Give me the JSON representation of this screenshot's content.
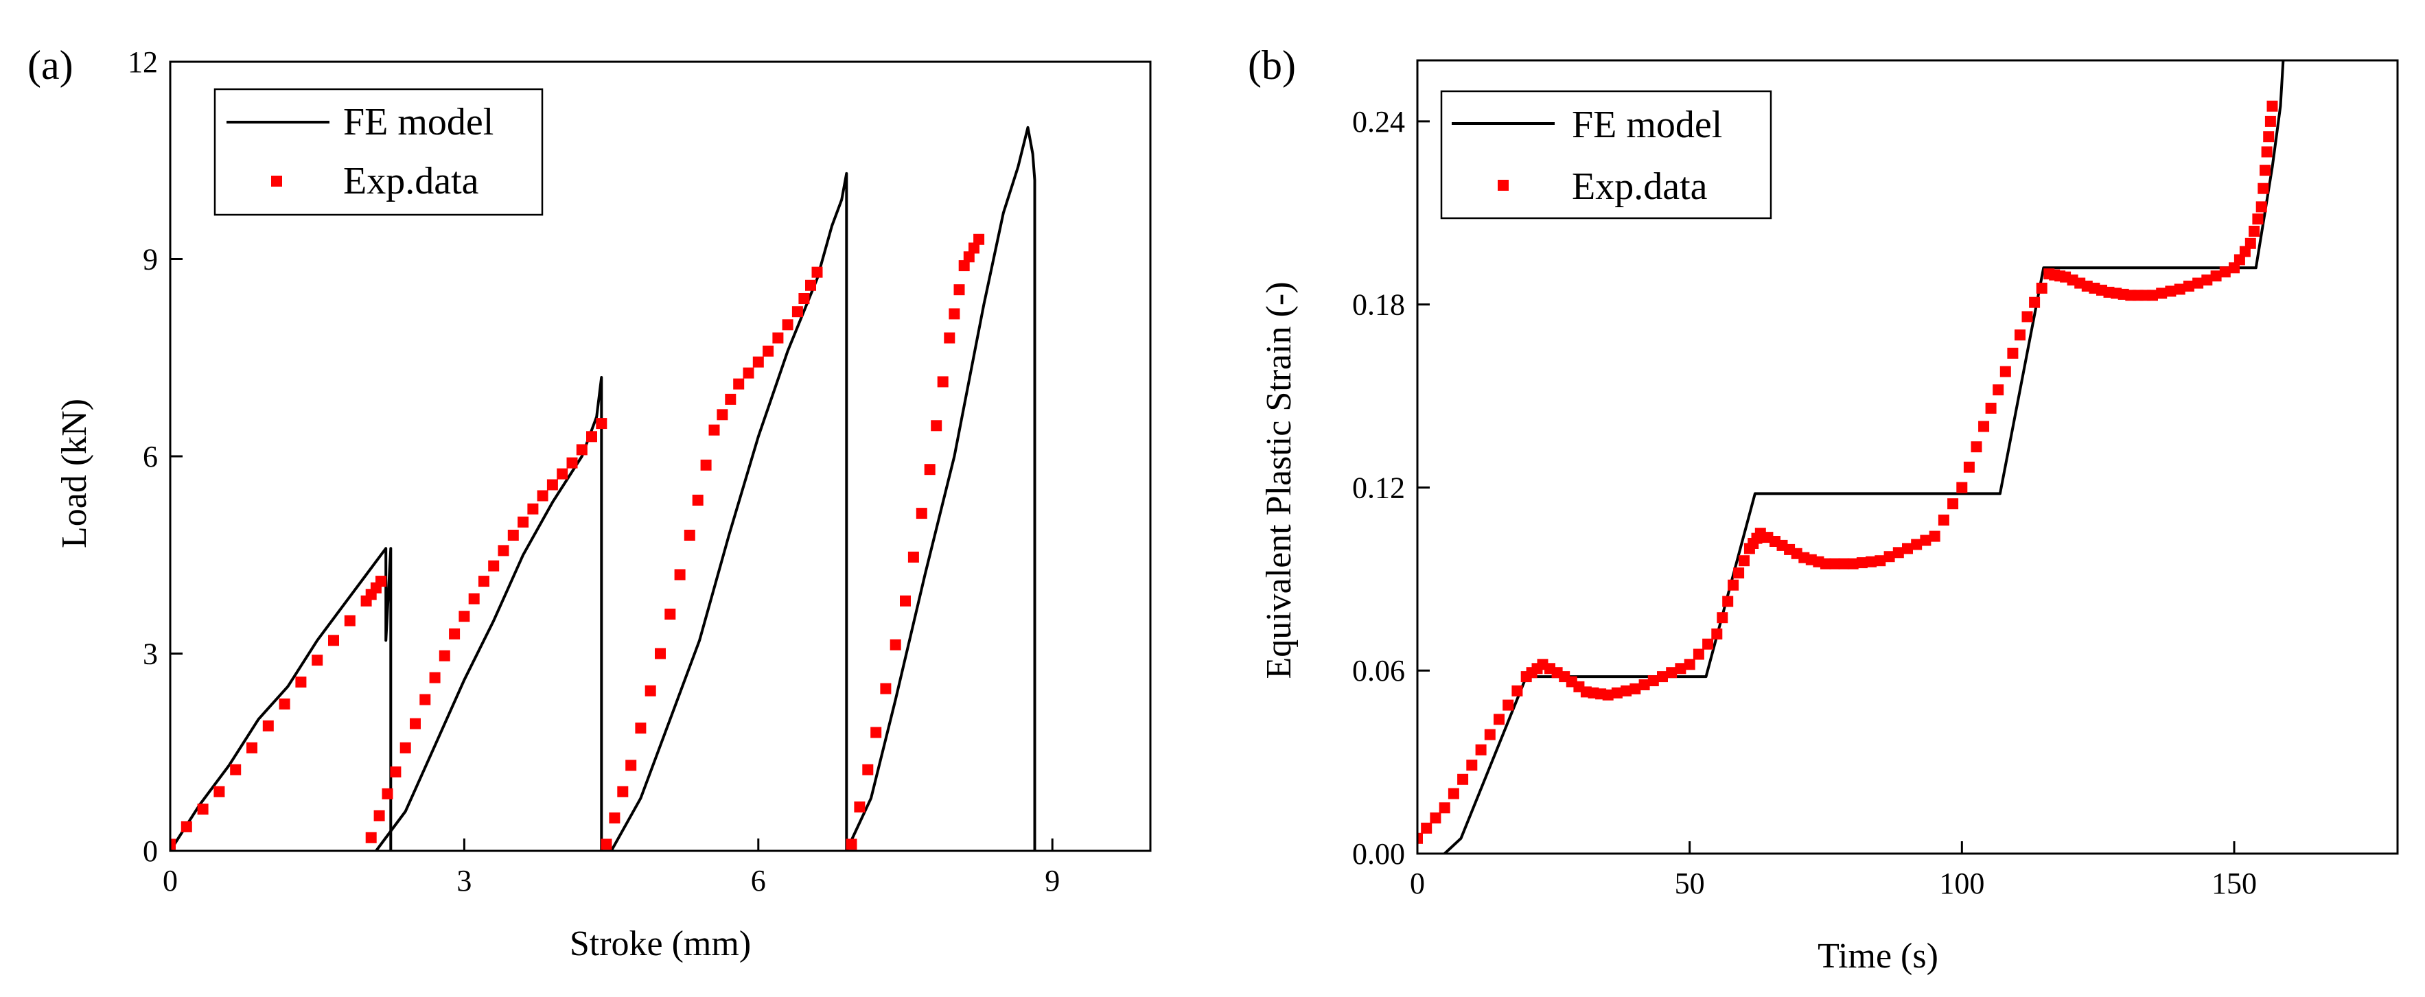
{
  "figure": {
    "panels": [
      "(a)",
      "(b)"
    ]
  },
  "colors": {
    "fe_model": "#000000",
    "exp_data": "#ff0000",
    "axes": "#000000",
    "background": "#ffffff"
  },
  "chart_data": [
    {
      "id": "a",
      "panel_label": "(a)",
      "type": "line",
      "title": "",
      "xlabel": "Stroke (mm)",
      "ylabel": "Load (kN)",
      "xlim": [
        0,
        10
      ],
      "ylim": [
        0,
        12
      ],
      "xticks": [
        0,
        3,
        6,
        9
      ],
      "yticks": [
        0,
        3,
        6,
        9,
        12
      ],
      "x_tick_labels": [
        "0",
        "3",
        "6",
        "9"
      ],
      "y_tick_labels": [
        "0",
        "3",
        "6",
        "9",
        "12"
      ],
      "grid": false,
      "legend": {
        "position": "top-left",
        "entries": [
          "FE model",
          "Exp.data"
        ]
      },
      "series": [
        {
          "name": "FE model",
          "style": "line",
          "segments": [
            {
              "x": [
                0.0,
                0.3,
                0.6,
                0.9,
                1.2,
                1.5,
                1.8,
                2.0,
                2.1,
                2.15,
                2.2,
                2.2,
                2.25,
                2.25
              ],
              "y": [
                0.0,
                0.7,
                1.3,
                2.0,
                2.5,
                3.2,
                3.8,
                4.2,
                4.4,
                4.5,
                4.6,
                3.2,
                4.6,
                0.0
              ]
            },
            {
              "x": [
                2.1,
                2.4,
                2.7,
                3.0,
                3.3,
                3.6,
                3.9,
                4.2,
                4.35,
                4.4,
                4.4
              ],
              "y": [
                0.0,
                0.6,
                1.6,
                2.6,
                3.5,
                4.5,
                5.3,
                6.0,
                6.6,
                7.2,
                0.0
              ]
            },
            {
              "x": [
                4.5,
                4.8,
                5.1,
                5.4,
                5.7,
                6.0,
                6.3,
                6.6,
                6.75,
                6.85,
                6.9,
                6.9
              ],
              "y": [
                0.0,
                0.8,
                2.0,
                3.2,
                4.8,
                6.3,
                7.6,
                8.7,
                9.5,
                9.9,
                10.3,
                0.0
              ]
            },
            {
              "x": [
                6.9,
                7.15,
                7.4,
                7.7,
                8.0,
                8.3,
                8.5,
                8.65,
                8.75,
                8.8,
                8.82,
                8.82
              ],
              "y": [
                0.0,
                0.8,
                2.3,
                4.2,
                6.0,
                8.3,
                9.7,
                10.4,
                11.0,
                10.6,
                10.2,
                0.0
              ]
            }
          ]
        },
        {
          "name": "Exp.data",
          "style": "markers",
          "segments": [
            {
              "x": [
                0.0,
                0.5,
                1.0,
                1.5,
                2.0,
                2.15
              ],
              "y": [
                0.1,
                0.9,
                1.9,
                2.9,
                3.8,
                4.1
              ]
            },
            {
              "x": [
                2.05,
                2.3,
                2.6,
                2.9,
                3.2,
                3.5,
                3.8,
                4.1,
                4.4
              ],
              "y": [
                0.2,
                1.2,
                2.3,
                3.3,
                4.1,
                4.8,
                5.4,
                5.9,
                6.5
              ]
            },
            {
              "x": [
                4.45,
                4.7,
                5.0,
                5.3,
                5.55,
                5.8,
                6.1,
                6.4,
                6.6
              ],
              "y": [
                0.1,
                1.3,
                3.0,
                4.8,
                6.4,
                7.1,
                7.6,
                8.2,
                8.8
              ]
            },
            {
              "x": [
                6.95,
                7.2,
                7.5,
                7.75,
                7.95,
                8.1,
                8.25
              ],
              "y": [
                0.1,
                1.8,
                3.8,
                5.8,
                7.8,
                8.9,
                9.3
              ]
            }
          ]
        }
      ]
    },
    {
      "id": "b",
      "panel_label": "(b)",
      "type": "line",
      "title": "",
      "xlabel": "Time (s)",
      "ylabel": "Equivalent Plastic Strain (-)",
      "xlim": [
        0,
        180
      ],
      "ylim": [
        0,
        0.26
      ],
      "xticks": [
        0,
        50,
        100,
        150
      ],
      "yticks": [
        0.0,
        0.06,
        0.12,
        0.18,
        0.24
      ],
      "x_tick_labels": [
        "0",
        "50",
        "100",
        "150"
      ],
      "y_tick_labels": [
        "0.00",
        "0.06",
        "0.12",
        "0.18",
        "0.24"
      ],
      "grid": false,
      "legend": {
        "position": "top-left",
        "entries": [
          "FE model",
          "Exp.data"
        ]
      },
      "series": [
        {
          "name": "FE model",
          "style": "line",
          "segments": [
            {
              "x": [
                5,
                8,
                20,
                53,
                62,
                107,
                115,
                154,
                157,
                158.5,
                159,
                159.5
              ],
              "y": [
                0.0,
                0.005,
                0.058,
                0.058,
                0.118,
                0.118,
                0.192,
                0.192,
                0.225,
                0.245,
                0.26,
                0.27
              ]
            }
          ]
        },
        {
          "name": "Exp.data",
          "style": "markers",
          "segments": [
            {
              "x": [
                0,
                5,
                10,
                15,
                20,
                23,
                27,
                31,
                35,
                40,
                45,
                50,
                55,
                58,
                61,
                63,
                67,
                71,
                75,
                80,
                85,
                90,
                95,
                100,
                104,
                108,
                112,
                116,
                119,
                123,
                127,
                131,
                135,
                140,
                145,
                150,
                153,
                155,
                156,
                157
              ],
              "y": [
                0.005,
                0.015,
                0.029,
                0.044,
                0.058,
                0.062,
                0.058,
                0.053,
                0.052,
                0.054,
                0.058,
                0.062,
                0.072,
                0.088,
                0.1,
                0.105,
                0.101,
                0.097,
                0.095,
                0.095,
                0.096,
                0.1,
                0.104,
                0.12,
                0.14,
                0.158,
                0.176,
                0.19,
                0.189,
                0.186,
                0.184,
                0.183,
                0.183,
                0.185,
                0.188,
                0.192,
                0.2,
                0.212,
                0.23,
                0.245
              ]
            }
          ]
        }
      ]
    }
  ]
}
